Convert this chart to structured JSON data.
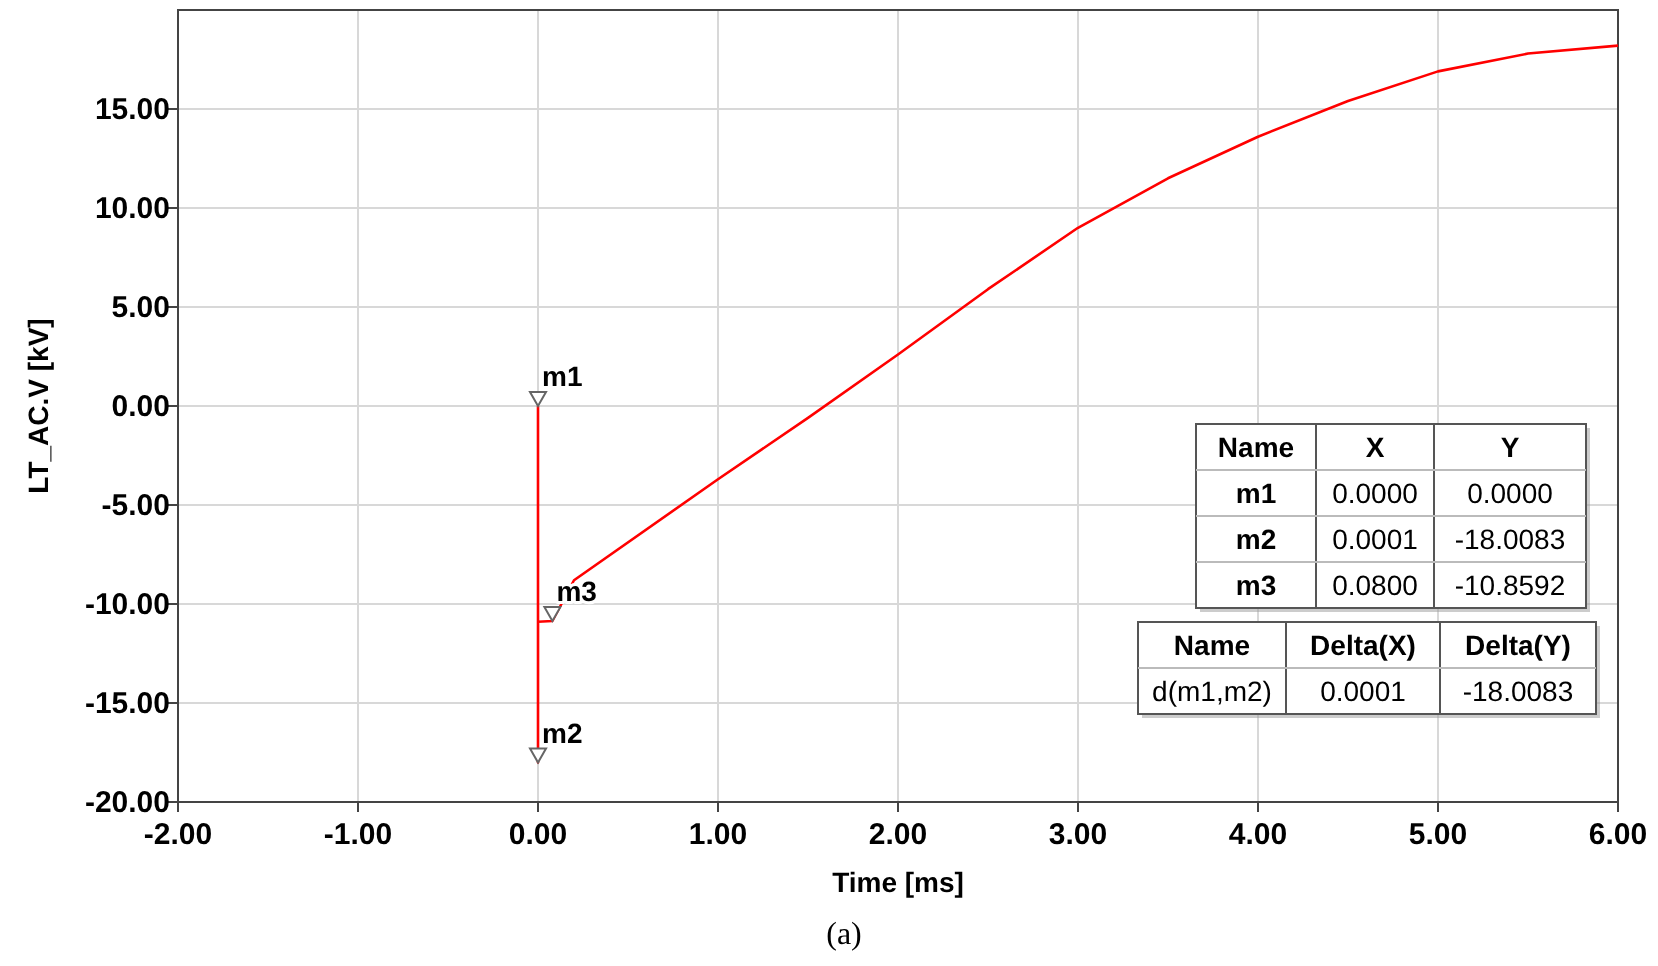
{
  "chart_data": {
    "type": "line",
    "xlabel": "Time [ms]",
    "ylabel": "LT_AC.V [kV]",
    "x": [
      0,
      0.0001,
      0.0002,
      0.08,
      0.2,
      1.0,
      1.5,
      2.0,
      2.5,
      3.0,
      3.5,
      4.0,
      4.5,
      5.0,
      5.5,
      6.0
    ],
    "series": [
      {
        "color": "#ff0000",
        "values": [
          0,
          -18.0083,
          -10.9,
          -10.8592,
          -8.8,
          -3.7,
          -0.6,
          2.6,
          5.9,
          9.0,
          11.5,
          13.6,
          15.4,
          16.9,
          17.8,
          18.2
        ]
      }
    ],
    "xlim": [
      -2,
      6
    ],
    "xticks": [
      {
        "value": -2,
        "label": "-2.00"
      },
      {
        "value": -1,
        "label": "-1.00"
      },
      {
        "value": 0,
        "label": "0.00"
      },
      {
        "value": 1,
        "label": "1.00"
      },
      {
        "value": 2,
        "label": "2.00"
      },
      {
        "value": 3,
        "label": "3.00"
      },
      {
        "value": 4,
        "label": "4.00"
      },
      {
        "value": 5,
        "label": "5.00"
      },
      {
        "value": 6,
        "label": "6.00"
      }
    ],
    "ylim": [
      -20,
      20
    ],
    "yticks": [
      {
        "value": -20,
        "label": "-20.00"
      },
      {
        "value": -15,
        "label": "-15.00"
      },
      {
        "value": -10,
        "label": "-10.00"
      },
      {
        "value": -5,
        "label": "-5.00"
      },
      {
        "value": 0,
        "label": "0.00"
      },
      {
        "value": 5,
        "label": "5.00"
      },
      {
        "value": 10,
        "label": "10.00"
      },
      {
        "value": 15,
        "label": "15.00"
      }
    ],
    "grid": true,
    "marker": "none",
    "line_style": "solid",
    "annotations": [
      {
        "text": "m1",
        "x": 0,
        "y": 0
      },
      {
        "text": "m2",
        "x": 0.0001,
        "y": -18.0083
      },
      {
        "text": "m3",
        "x": 0.08,
        "y": -10.8592
      },
      "Name",
      "X",
      "Y",
      "m1",
      "0.0000",
      "0.0000",
      "m2",
      "0.0001",
      "-18.0083",
      "m3",
      "0.0800",
      "-10.8592",
      "Name",
      "Delta(X)",
      "Delta(Y)",
      "d(m1,m2)",
      "0.0001",
      "-18.0083",
      "(a)"
    ]
  }
}
